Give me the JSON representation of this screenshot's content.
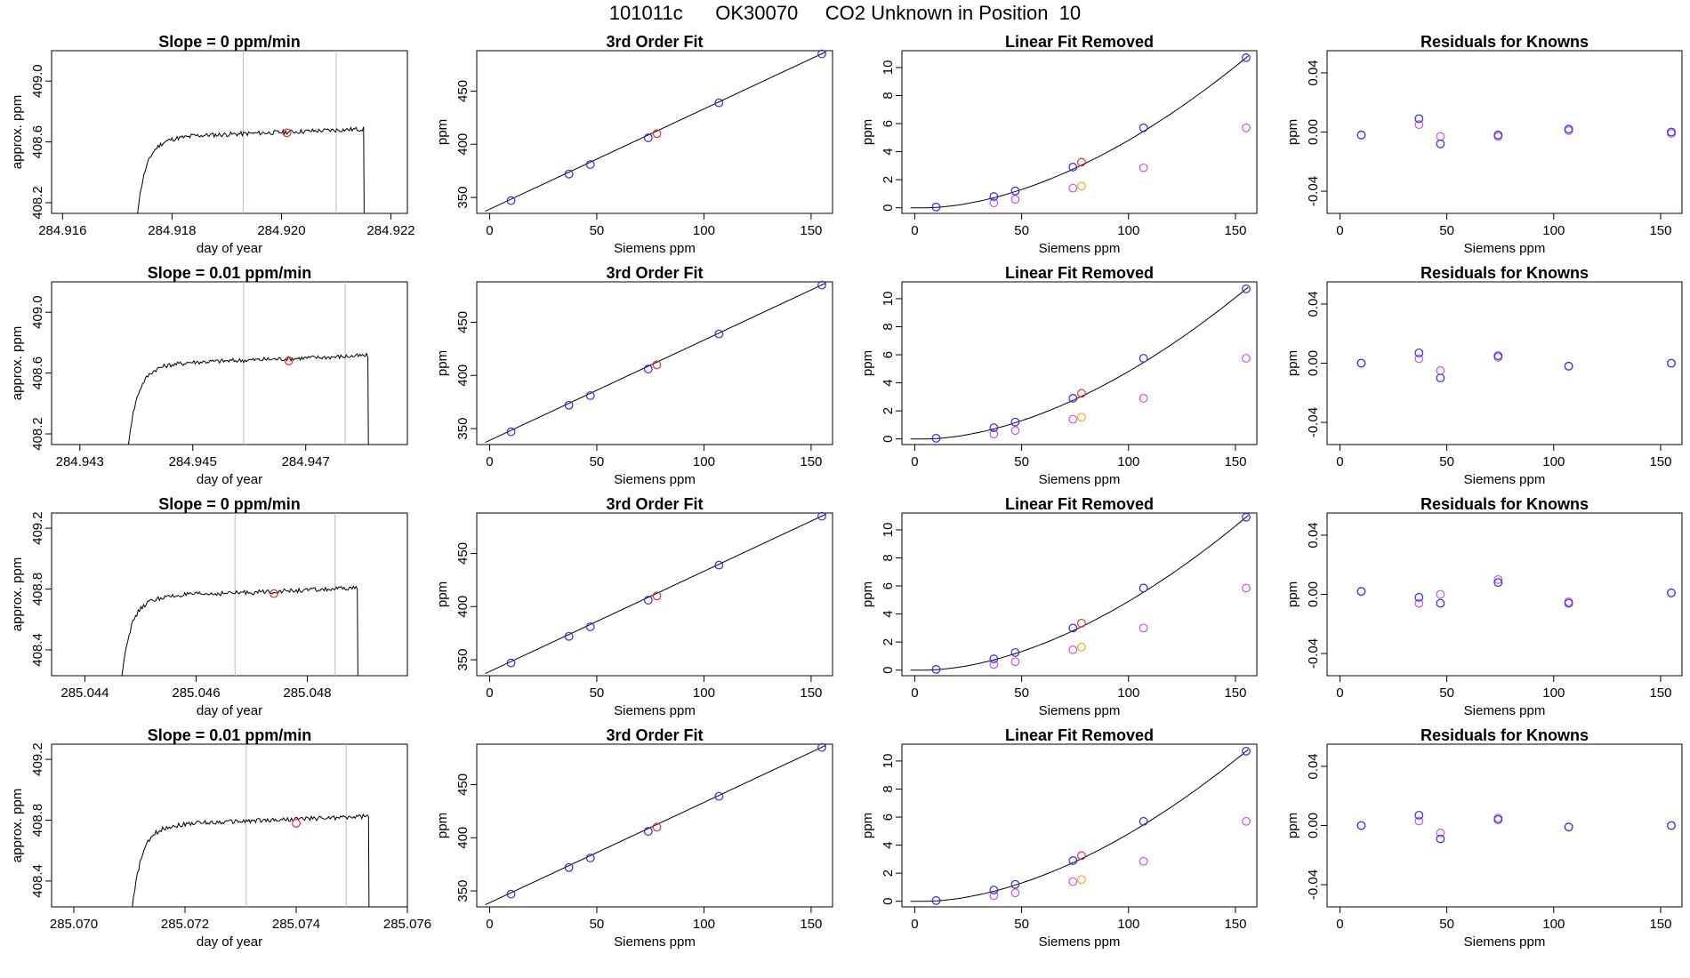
{
  "title": "101011c      OK30070     CO2 Unknown in Position  10",
  "colors": {
    "blue": "#2a2aee",
    "red": "#ee2a2a",
    "magenta": "#d050ee",
    "orange": "#f5a623",
    "line": "#000000",
    "gridline": "#bbbbbb"
  },
  "chart_data": [
    {
      "row": 1,
      "timeseries": {
        "type": "line",
        "title": "Slope =  0  ppm/min",
        "xlabel": "day of year",
        "ylabel": "approx. ppm",
        "xlim": [
          284.9158,
          284.9223
        ],
        "ylim": [
          408.13,
          409.2
        ],
        "xticks": [
          284.916,
          284.918,
          284.92,
          284.922
        ],
        "xtick_labels": [
          "284.916",
          "284.918",
          "284.920",
          "284.922"
        ],
        "yticks": [
          408.2,
          408.6,
          409.0
        ],
        "ytick_labels": [
          "408.2",
          "408.6",
          "409.0"
        ],
        "vlines": [
          284.9193,
          284.921
        ],
        "marker": {
          "x": 284.9201,
          "y": 408.66
        },
        "profile": {
          "t0": 284.9173,
          "t1": 284.9215,
          "start": 408.1,
          "level": 408.64,
          "rise": 0.2
        }
      },
      "fit": {
        "type": "scatter",
        "title": "3rd Order Fit",
        "xlabel": "Siemens ppm",
        "ylabel": "ppm",
        "xlim": [
          -6,
          160
        ],
        "ylim": [
          335,
          488
        ],
        "xticks": [
          0,
          50,
          100,
          150
        ],
        "yticks": [
          350,
          400,
          450
        ],
        "knowns_x": [
          10,
          37,
          47,
          74,
          107,
          155
        ],
        "knowns_y": [
          347,
          372,
          381,
          406,
          439,
          485
        ],
        "unknown_x": 78,
        "unknown_y": 410,
        "line": [
          [
            -2,
            337
          ],
          [
            157,
            487
          ]
        ]
      },
      "linear_removed": {
        "type": "scatter",
        "title": "Linear Fit Removed",
        "xlabel": "Siemens ppm",
        "ylabel": "ppm",
        "xlim": [
          -6,
          160
        ],
        "ylim": [
          -0.4,
          11.2
        ],
        "xticks": [
          0,
          50,
          100,
          150
        ],
        "yticks": [
          0,
          2,
          4,
          6,
          8,
          10
        ],
        "knowns_x": [
          10,
          37,
          47,
          74,
          107,
          155
        ],
        "knowns_y": [
          0.05,
          0.8,
          1.2,
          2.9,
          5.7,
          10.7
        ],
        "magenta_x": [
          37,
          47,
          74,
          107,
          155
        ],
        "magenta_y": [
          0.35,
          0.6,
          1.4,
          2.85,
          5.7
        ],
        "unknown_x": 78,
        "unknown_y": 3.25,
        "orange_x": 78,
        "orange_y": 1.55,
        "curve_scale": 10.7
      },
      "residuals": {
        "type": "scatter",
        "title": "Residuals for Knowns",
        "xlabel": "Siemens ppm",
        "ylabel": "ppm",
        "xlim": [
          -6,
          160
        ],
        "ylim": [
          -0.055,
          0.055
        ],
        "xticks": [
          0,
          50,
          100,
          150
        ],
        "yticks": [
          -0.04,
          0.0,
          0.04
        ],
        "ytick_labels": [
          "-0.04",
          "0.00",
          "0.04"
        ],
        "x": [
          10,
          37,
          47,
          74,
          107,
          155
        ],
        "blue": [
          -0.002,
          0.009,
          -0.008,
          -0.002,
          0.002,
          0.0
        ],
        "magenta": [
          -0.002,
          0.005,
          -0.003,
          -0.003,
          0.001,
          -0.001
        ]
      }
    },
    {
      "row": 2,
      "timeseries": {
        "type": "line",
        "title": "Slope =  0.01  ppm/min",
        "xlabel": "day of year",
        "ylabel": "approx. ppm",
        "xlim": [
          284.9425,
          284.9488
        ],
        "ylim": [
          408.13,
          409.2
        ],
        "xticks": [
          284.943,
          284.945,
          284.947
        ],
        "xtick_labels": [
          "284.943",
          "284.945",
          "284.947"
        ],
        "yticks": [
          408.2,
          408.6,
          409.0
        ],
        "ytick_labels": [
          "408.2",
          "408.6",
          "409.0"
        ],
        "vlines": [
          284.9459,
          284.9477
        ],
        "marker": {
          "x": 284.9467,
          "y": 408.68
        },
        "profile": {
          "t0": 284.9438,
          "t1": 284.9481,
          "start": 408.1,
          "level": 408.67,
          "rise": 0.2
        }
      },
      "fit": {
        "type": "scatter",
        "title": "3rd Order Fit",
        "xlabel": "Siemens ppm",
        "ylabel": "ppm",
        "xlim": [
          -6,
          160
        ],
        "ylim": [
          335,
          488
        ],
        "xticks": [
          0,
          50,
          100,
          150
        ],
        "yticks": [
          350,
          400,
          450
        ],
        "knowns_x": [
          10,
          37,
          47,
          74,
          107,
          155
        ],
        "knowns_y": [
          347,
          372,
          381,
          406,
          439,
          485
        ],
        "unknown_x": 78,
        "unknown_y": 410,
        "line": [
          [
            -2,
            337
          ],
          [
            157,
            487
          ]
        ]
      },
      "linear_removed": {
        "type": "scatter",
        "title": "Linear Fit Removed",
        "xlabel": "Siemens ppm",
        "ylabel": "ppm",
        "xlim": [
          -6,
          160
        ],
        "ylim": [
          -0.4,
          11.2
        ],
        "xticks": [
          0,
          50,
          100,
          150
        ],
        "yticks": [
          0,
          2,
          4,
          6,
          8,
          10
        ],
        "knowns_x": [
          10,
          37,
          47,
          74,
          107,
          155
        ],
        "knowns_y": [
          0.05,
          0.8,
          1.2,
          2.9,
          5.75,
          10.7
        ],
        "magenta_x": [
          37,
          47,
          74,
          107,
          155
        ],
        "magenta_y": [
          0.35,
          0.6,
          1.4,
          2.9,
          5.75
        ],
        "unknown_x": 78,
        "unknown_y": 3.25,
        "orange_x": 78,
        "orange_y": 1.55,
        "curve_scale": 10.7
      },
      "residuals": {
        "type": "scatter",
        "title": "Residuals for Knowns",
        "xlabel": "Siemens ppm",
        "ylabel": "ppm",
        "xlim": [
          -6,
          160
        ],
        "ylim": [
          -0.055,
          0.055
        ],
        "xticks": [
          0,
          50,
          100,
          150
        ],
        "yticks": [
          -0.04,
          0.0,
          0.04
        ],
        "ytick_labels": [
          "-0.04",
          "0.00",
          "0.04"
        ],
        "x": [
          10,
          37,
          47,
          74,
          107,
          155
        ],
        "blue": [
          0.0,
          0.007,
          -0.01,
          0.005,
          -0.002,
          0.0
        ],
        "magenta": [
          0.0,
          0.003,
          -0.005,
          0.004,
          -0.002,
          0.0
        ]
      }
    },
    {
      "row": 3,
      "timeseries": {
        "type": "line",
        "title": "Slope =  0  ppm/min",
        "xlabel": "day of year",
        "ylabel": "approx. ppm",
        "xlim": [
          285.0434,
          285.0498
        ],
        "ylim": [
          408.23,
          409.3
        ],
        "xticks": [
          285.044,
          285.046,
          285.048
        ],
        "xtick_labels": [
          "285.044",
          "285.046",
          "285.048"
        ],
        "yticks": [
          408.4,
          408.8,
          409.2
        ],
        "ytick_labels": [
          "408.4",
          "408.8",
          "409.2"
        ],
        "vlines": [
          285.0467,
          285.0485
        ],
        "marker": {
          "x": 285.0474,
          "y": 408.77
        },
        "profile": {
          "t0": 285.0446,
          "t1": 285.0489,
          "start": 408.2,
          "level": 408.76,
          "rise": 0.2
        }
      },
      "fit": {
        "type": "scatter",
        "title": "3rd Order Fit",
        "xlabel": "Siemens ppm",
        "ylabel": "ppm",
        "xlim": [
          -6,
          160
        ],
        "ylim": [
          335,
          488
        ],
        "xticks": [
          0,
          50,
          100,
          150
        ],
        "yticks": [
          350,
          400,
          450
        ],
        "knowns_x": [
          10,
          37,
          47,
          74,
          107,
          155
        ],
        "knowns_y": [
          347,
          372,
          381,
          406,
          439,
          485
        ],
        "unknown_x": 78,
        "unknown_y": 410,
        "line": [
          [
            -2,
            337
          ],
          [
            157,
            487
          ]
        ]
      },
      "linear_removed": {
        "type": "scatter",
        "title": "Linear Fit Removed",
        "xlabel": "Siemens ppm",
        "ylabel": "ppm",
        "xlim": [
          -6,
          160
        ],
        "ylim": [
          -0.4,
          11.2
        ],
        "xticks": [
          0,
          50,
          100,
          150
        ],
        "yticks": [
          0,
          2,
          4,
          6,
          8,
          10
        ],
        "knowns_x": [
          10,
          37,
          47,
          74,
          107,
          155
        ],
        "knowns_y": [
          0.05,
          0.8,
          1.25,
          3.0,
          5.85,
          10.9
        ],
        "magenta_x": [
          37,
          47,
          74,
          107,
          155
        ],
        "magenta_y": [
          0.4,
          0.6,
          1.45,
          3.0,
          5.85
        ],
        "unknown_x": 78,
        "unknown_y": 3.35,
        "orange_x": 78,
        "orange_y": 1.65,
        "curve_scale": 10.9
      },
      "residuals": {
        "type": "scatter",
        "title": "Residuals for Knowns",
        "xlabel": "Siemens ppm",
        "ylabel": "ppm",
        "xlim": [
          -6,
          160
        ],
        "ylim": [
          -0.055,
          0.055
        ],
        "xticks": [
          0,
          50,
          100,
          150
        ],
        "yticks": [
          -0.04,
          0.0,
          0.04
        ],
        "ytick_labels": [
          "-0.04",
          "0.00",
          "0.04"
        ],
        "x": [
          10,
          37,
          47,
          74,
          107,
          155
        ],
        "blue": [
          0.002,
          -0.002,
          -0.006,
          0.008,
          -0.006,
          0.001
        ],
        "magenta": [
          0.002,
          -0.006,
          0.0,
          0.01,
          -0.005,
          0.001
        ]
      }
    },
    {
      "row": 4,
      "timeseries": {
        "type": "line",
        "title": "Slope =  0.01  ppm/min",
        "xlabel": "day of year",
        "ylabel": "approx. ppm",
        "xlim": [
          285.0696,
          285.076
        ],
        "ylim": [
          408.23,
          409.3
        ],
        "xticks": [
          285.07,
          285.072,
          285.074,
          285.076
        ],
        "xtick_labels": [
          "285.070",
          "285.072",
          "285.074",
          "285.076"
        ],
        "yticks": [
          408.4,
          408.8,
          409.2
        ],
        "ytick_labels": [
          "408.4",
          "408.8",
          "409.2"
        ],
        "vlines": [
          285.0731,
          285.0749
        ],
        "marker": {
          "x": 285.074,
          "y": 408.78
        },
        "profile": {
          "t0": 285.071,
          "t1": 285.0753,
          "start": 408.2,
          "level": 408.78,
          "rise": 0.2
        }
      },
      "fit": {
        "type": "scatter",
        "title": "3rd Order Fit",
        "xlabel": "Siemens ppm",
        "ylabel": "ppm",
        "xlim": [
          -6,
          160
        ],
        "ylim": [
          335,
          488
        ],
        "xticks": [
          0,
          50,
          100,
          150
        ],
        "yticks": [
          350,
          400,
          450
        ],
        "knowns_x": [
          10,
          37,
          47,
          74,
          107,
          155
        ],
        "knowns_y": [
          347,
          372,
          381,
          406,
          439,
          485
        ],
        "unknown_x": 78,
        "unknown_y": 410,
        "line": [
          [
            -2,
            337
          ],
          [
            157,
            487
          ]
        ]
      },
      "linear_removed": {
        "type": "scatter",
        "title": "Linear Fit Removed",
        "xlabel": "Siemens ppm",
        "ylabel": "ppm",
        "xlim": [
          -6,
          160
        ],
        "ylim": [
          -0.4,
          11.2
        ],
        "xticks": [
          0,
          50,
          100,
          150
        ],
        "yticks": [
          0,
          2,
          4,
          6,
          8,
          10
        ],
        "knowns_x": [
          10,
          37,
          47,
          74,
          107,
          155
        ],
        "knowns_y": [
          0.05,
          0.8,
          1.2,
          2.9,
          5.7,
          10.7
        ],
        "magenta_x": [
          37,
          47,
          74,
          107,
          155
        ],
        "magenta_y": [
          0.4,
          0.6,
          1.4,
          2.85,
          5.7
        ],
        "unknown_x": 78,
        "unknown_y": 3.25,
        "orange_x": 78,
        "orange_y": 1.55,
        "curve_scale": 10.7
      },
      "residuals": {
        "type": "scatter",
        "title": "Residuals for Knowns",
        "xlabel": "Siemens ppm",
        "ylabel": "ppm",
        "xlim": [
          -6,
          160
        ],
        "ylim": [
          -0.055,
          0.055
        ],
        "xticks": [
          0,
          50,
          100,
          150
        ],
        "yticks": [
          -0.04,
          0.0,
          0.04
        ],
        "ytick_labels": [
          "-0.04",
          "0.00",
          "0.04"
        ],
        "x": [
          10,
          37,
          47,
          74,
          107,
          155
        ],
        "blue": [
          0.0,
          0.007,
          -0.009,
          0.004,
          -0.001,
          0.0
        ],
        "magenta": [
          0.0,
          0.003,
          -0.005,
          0.005,
          -0.001,
          0.0
        ]
      }
    }
  ]
}
